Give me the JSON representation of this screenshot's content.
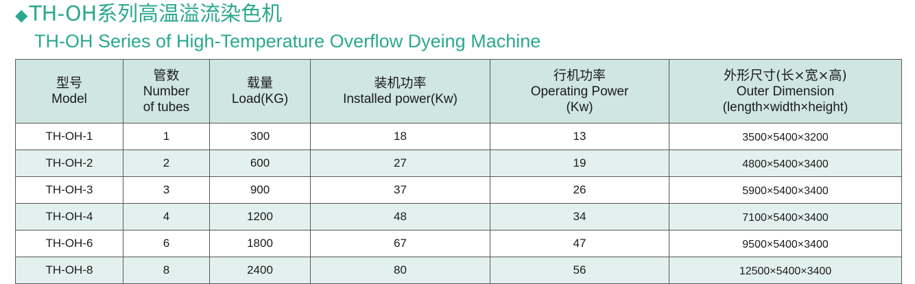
{
  "title": {
    "marker": "◆",
    "cn": "TH-OH系列高温溢流染色机",
    "en": "TH-OH Series of High-Temperature Overflow Dyeing Machine"
  },
  "table": {
    "headers": [
      {
        "cn": "型号",
        "en1": "Model",
        "en2": ""
      },
      {
        "cn": "管数",
        "en1": "Number",
        "en2": "of tubes"
      },
      {
        "cn": "载量",
        "en1": "Load(KG)",
        "en2": ""
      },
      {
        "cn": "装机功率",
        "en1": "Installed power(Kw)",
        "en2": ""
      },
      {
        "cn": "行机功率",
        "en1": "Operating Power",
        "en2": "(Kw)"
      },
      {
        "cn": "外形尺寸(长×宽×高)",
        "en1": "Outer Dimension",
        "en2": "(length×width×height)"
      }
    ],
    "rows": [
      [
        "TH-OH-1",
        "1",
        "300",
        "18",
        "13",
        "3500×5400×3200"
      ],
      [
        "TH-OH-2",
        "2",
        "600",
        "27",
        "19",
        "4800×5400×3400"
      ],
      [
        "TH-OH-3",
        "3",
        "900",
        "37",
        "26",
        "5900×5400×3400"
      ],
      [
        "TH-OH-4",
        "4",
        "1200",
        "48",
        "34",
        "7100×5400×3400"
      ],
      [
        "TH-OH-6",
        "6",
        "1800",
        "67",
        "47",
        "9500×5400×3400"
      ],
      [
        "TH-OH-8",
        "8",
        "2400",
        "80",
        "56",
        "12500×5400×3400"
      ]
    ]
  },
  "colors": {
    "title": "#2aa88f",
    "header_bg": "#cfe6e3",
    "alt_row_bg": "#e3f1ee",
    "border": "#555555"
  }
}
